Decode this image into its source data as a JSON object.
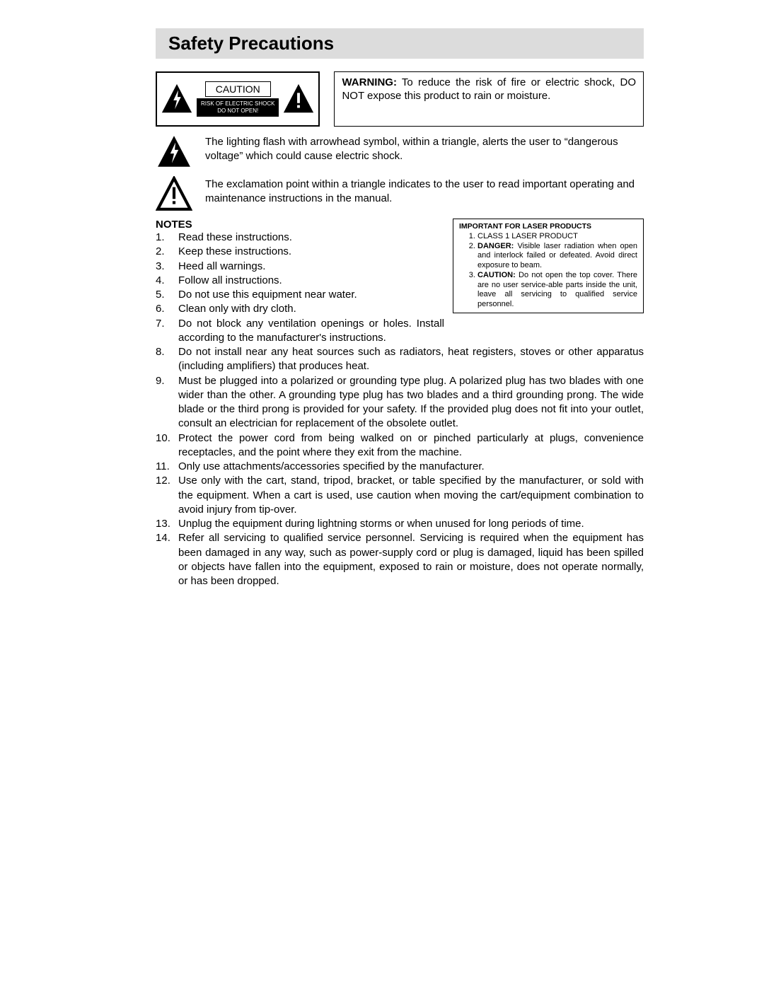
{
  "title": "Safety Precautions",
  "caution": {
    "word": "CAUTION",
    "risk_line1": "RISK OF ELECTRIC SHOCK",
    "risk_line2": "DO NOT OPEN!"
  },
  "warning": {
    "label": "WARNING:",
    "text": " To reduce the risk of fire or electric shock, DO NOT expose this product to rain or moisture."
  },
  "symbol_flash": "The lighting flash with arrowhead symbol, within a triangle, alerts the user to “dangerous voltage” which could cause electric shock.",
  "symbol_excl": "The exclamation point within a triangle indicates to the user to read important operating and maintenance instructions in the manual.",
  "laser": {
    "title": "IMPORTANT FOR LASER PRODUCTS",
    "items": [
      {
        "text": "CLASS 1 LASER PRODUCT"
      },
      {
        "bold": "DANGER:",
        "text": " Visible laser radiation when open and interlock failed or defeated. Avoid direct exposure to beam."
      },
      {
        "bold": "CAUTION:",
        "text": " Do not open the top cover. There are no user service-able parts inside the unit, leave all servicing to qualified service personnel."
      }
    ]
  },
  "notes_title": "NOTES",
  "notes": [
    "Read these instructions.",
    "Keep these instructions.",
    "Heed all warnings.",
    "Follow all instructions.",
    "Do not use this equipment near water.",
    "Clean only with dry cloth.",
    "Do not block any ventilation openings or holes. Install according to the manufacturer's instructions.",
    "Do not install near any heat sources such as radiators, heat registers, stoves or other apparatus (including amplifiers) that produces heat.",
    "Must be plugged into a polarized or grounding type plug. A polarized plug has two blades with one wider than the other. A grounding type plug has two blades and a third grounding prong. The wide blade or the third prong is provided for your safety. If the provided plug does not fit into your outlet, consult an electrician for replacement of the obsolete outlet.",
    "Protect the power cord from being walked on or pinched particularly at plugs, convenience receptacles, and the point where they exit from the machine.",
    "Only use attachments/accessories specified by the manufacturer.",
    "Use only with the cart, stand, tripod, bracket, or table specified by the manufacturer, or sold with the equipment. When a cart is used, use caution when moving the cart/equipment combination to avoid injury from tip-over.",
    "Unplug the equipment during lightning storms or when unused for long periods of time.",
    "Refer all servicing to qualified service personnel. Servicing is required when the equipment has been damaged in any way, such as power-supply cord or plug is damaged, liquid has been spilled or objects have fallen into the equipment, exposed to rain or moisture, does not operate normally, or has been dropped."
  ],
  "colors": {
    "title_bg": "#dcdcdc",
    "text": "#000000",
    "bg": "#ffffff"
  }
}
